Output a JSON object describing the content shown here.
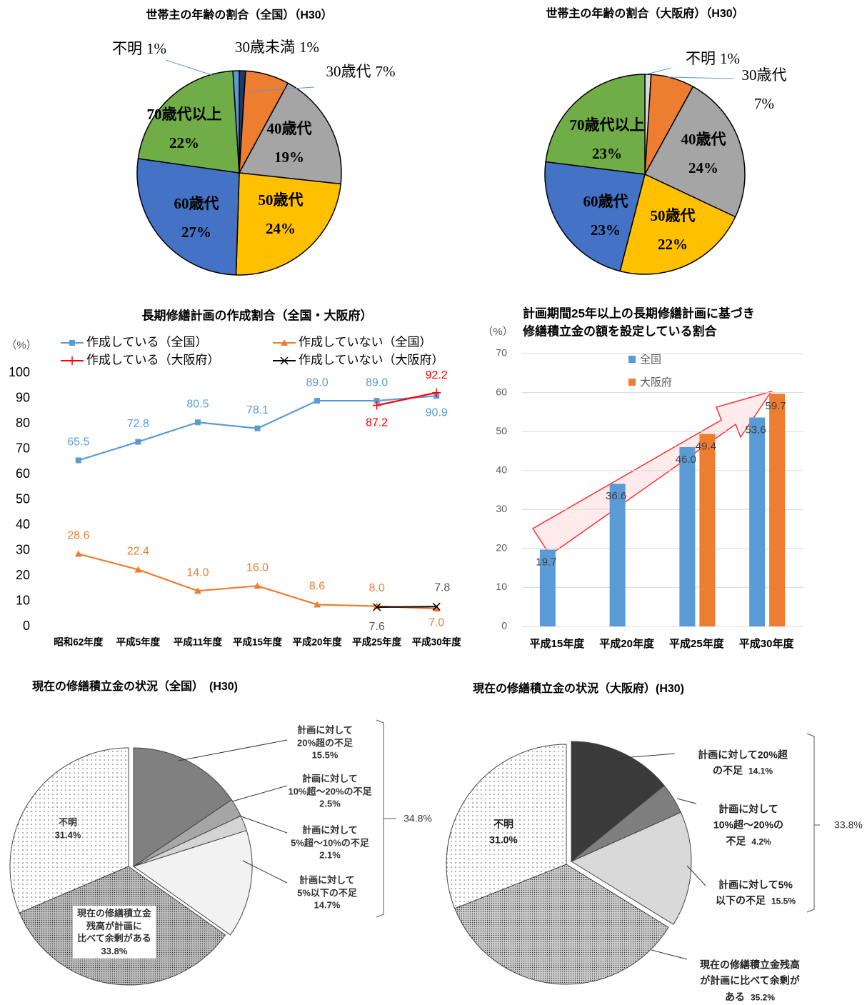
{
  "chart_data": [
    {
      "type": "pie",
      "title": "世帯主の年齢の割合（全国）（H30）",
      "categories": [
        "30歳未満",
        "30歳代",
        "40歳代",
        "50歳代",
        "60歳代",
        "70歳代以上",
        "不明"
      ],
      "values": [
        1,
        7,
        19,
        24,
        27,
        22,
        1
      ],
      "value_labels": [
        "1%",
        "7%",
        "19%",
        "24%",
        "27%",
        "22%",
        "1%"
      ],
      "colors": [
        "#203864",
        "#ed7d31",
        "#a5a5a5",
        "#ffc000",
        "#4472c4",
        "#70ad47",
        "#5b9bd5"
      ]
    },
    {
      "type": "pie",
      "title": "世帯主の年齢の割合（大阪府）（H30）",
      "categories": [
        "不明",
        "30歳代",
        "40歳代",
        "50歳代",
        "60歳代",
        "70歳代以上"
      ],
      "values": [
        1,
        7,
        24,
        22,
        23,
        23
      ],
      "value_labels": [
        "1%",
        "7%",
        "24%",
        "22%",
        "23%",
        "23%"
      ],
      "colors": [
        "#d9d9d9",
        "#ed7d31",
        "#a5a5a5",
        "#ffc000",
        "#4472c4",
        "#70ad47"
      ]
    },
    {
      "type": "line",
      "title": "長期修繕計画の作成割合（全国・大阪府）",
      "y_label": "（%）",
      "categories": [
        "昭和62年度",
        "平成5年度",
        "平成11年度",
        "平成15年度",
        "平成20年度",
        "平成25年度",
        "平成30年度"
      ],
      "series": [
        {
          "name": "作成している（全国）",
          "color": "#5b9bd5",
          "marker": "square",
          "values": [
            65.5,
            72.8,
            80.5,
            78.1,
            89.0,
            89.0,
            90.9
          ],
          "value_labels": [
            "65.5",
            "72.8",
            "80.5",
            "78.1",
            "89.0",
            "89.0",
            "90.9"
          ]
        },
        {
          "name": "作成していない（全国）",
          "color": "#ed7d31",
          "marker": "triangle",
          "values": [
            28.6,
            22.4,
            14.0,
            16.0,
            8.6,
            8.0,
            7.0
          ],
          "value_labels": [
            "28.6",
            "22.4",
            "14.0",
            "16.0",
            "8.6",
            "8.0",
            "7.0"
          ]
        },
        {
          "name": "作成している（大阪府）",
          "color": "#ff0000",
          "marker": "plus",
          "values": [
            null,
            null,
            null,
            null,
            null,
            87.2,
            92.2
          ],
          "value_labels": [
            null,
            null,
            null,
            null,
            null,
            "87.2",
            "92.2"
          ]
        },
        {
          "name": "作成していない（大阪府）",
          "color": "#000000",
          "marker": "x",
          "values": [
            null,
            null,
            null,
            null,
            null,
            7.6,
            7.8
          ],
          "value_labels": [
            null,
            null,
            null,
            null,
            null,
            "7.6",
            "7.8"
          ]
        }
      ],
      "ylim": [
        0,
        100
      ],
      "yticks": [
        0,
        10,
        20,
        30,
        40,
        50,
        60,
        70,
        80,
        90,
        100
      ],
      "grid": false
    },
    {
      "type": "bar",
      "title": [
        "計画期間25年以上の長期修繕計画に基づき",
        "修繕積立金の額を設定している割合"
      ],
      "y_label": "（%）",
      "categories": [
        "平成15年度",
        "平成20年度",
        "平成25年度",
        "平成30年度"
      ],
      "series": [
        {
          "name": "全国",
          "color": "#5b9bd5",
          "values": [
            19.7,
            36.6,
            46.0,
            53.6
          ],
          "value_labels": [
            "19.7",
            "36.6",
            "46.0",
            "53.6"
          ]
        },
        {
          "name": "大阪府",
          "color": "#ed7d31",
          "values": [
            null,
            null,
            49.4,
            59.7
          ],
          "value_labels": [
            null,
            null,
            "49.4",
            "59.7"
          ]
        }
      ],
      "ylim": [
        0,
        70
      ],
      "yticks": [
        0,
        10,
        20,
        30,
        40,
        50,
        60,
        70
      ],
      "grid": true
    },
    {
      "type": "pie",
      "title": "現在の修繕積立金の状況（全国）　(H30)",
      "categories": [
        "計画に対して\n20%超の不足",
        "計画に対して\n10%超～20%の不足",
        "計画に対して\n5%超～10%の不足",
        "計画に対して\n5%以下の不足",
        "現在の修繕積立金\n残高が計画に\n比べて余剰がある",
        "不明"
      ],
      "values": [
        15.5,
        2.5,
        2.1,
        14.7,
        33.8,
        31.4
      ],
      "value_labels": [
        "15.5%",
        "2.5%",
        "2.1%",
        "14.7%",
        "33.8%",
        "31.4%"
      ],
      "colors": [
        "#808080",
        "#a6a6a6",
        "#d4d4d4",
        "#f2f2f2",
        "#bfbfbf",
        "#ffffff"
      ],
      "patterns": [
        null,
        null,
        null,
        null,
        "dense-dots",
        "dots"
      ],
      "explode": [
        true,
        true,
        true,
        true,
        false,
        false
      ],
      "annotation": "34.8%"
    },
    {
      "type": "pie",
      "title": "現在の修繕積立金の状況（大阪府）(H30)",
      "categories": [
        "計画に対して20%超\nの不足",
        "計画に対して\n10%超～20%の\n不足",
        "計画に対して5%\n以下の不足",
        "現在の修繕積立金残高\nが計画に比べて余剰が\nある",
        "不明"
      ],
      "values": [
        14.1,
        4.2,
        15.5,
        35.2,
        31.0
      ],
      "value_labels": [
        "14.1%",
        "4.2%",
        "15.5%",
        "35.2%",
        "31.0%"
      ],
      "colors": [
        "#3a3a3a",
        "#7f7f7f",
        "#d9d9d9",
        "#cfcfcf",
        "#ffffff"
      ],
      "patterns": [
        null,
        null,
        null,
        "dense-dots",
        "dots"
      ],
      "explode": [
        true,
        true,
        true,
        false,
        false
      ],
      "annotation": "33.8%"
    }
  ]
}
